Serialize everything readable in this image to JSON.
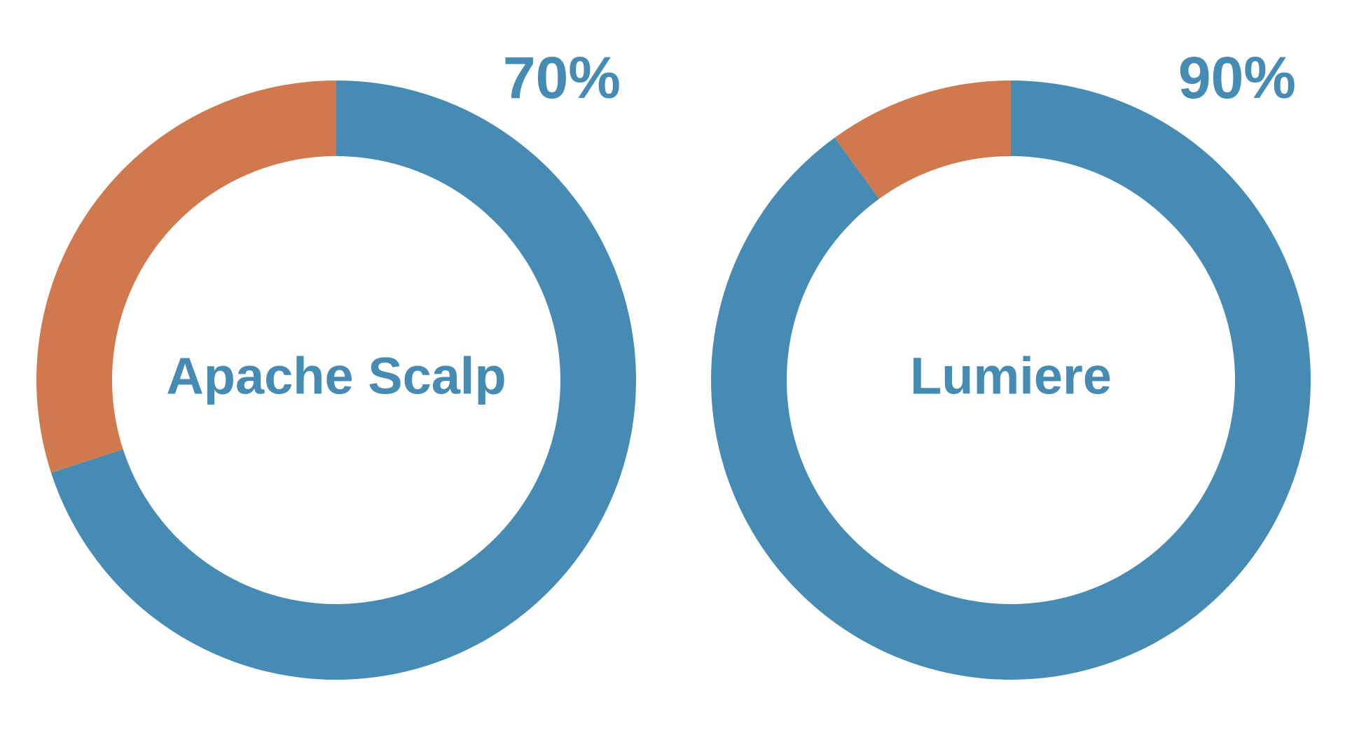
{
  "colors": {
    "primary": "#468bb3",
    "remainder": "#d0784e",
    "background": "#ffffff"
  },
  "chart_data": [
    {
      "type": "pie",
      "title": "",
      "center_label": "Apache Scalp",
      "percent_label": "70%",
      "slices": [
        {
          "value": 70
        },
        {
          "value": 30
        }
      ]
    },
    {
      "type": "pie",
      "title": "",
      "center_label": "Lumiere",
      "percent_label": "90%",
      "slices": [
        {
          "value": 90
        },
        {
          "value": 10
        }
      ]
    }
  ]
}
